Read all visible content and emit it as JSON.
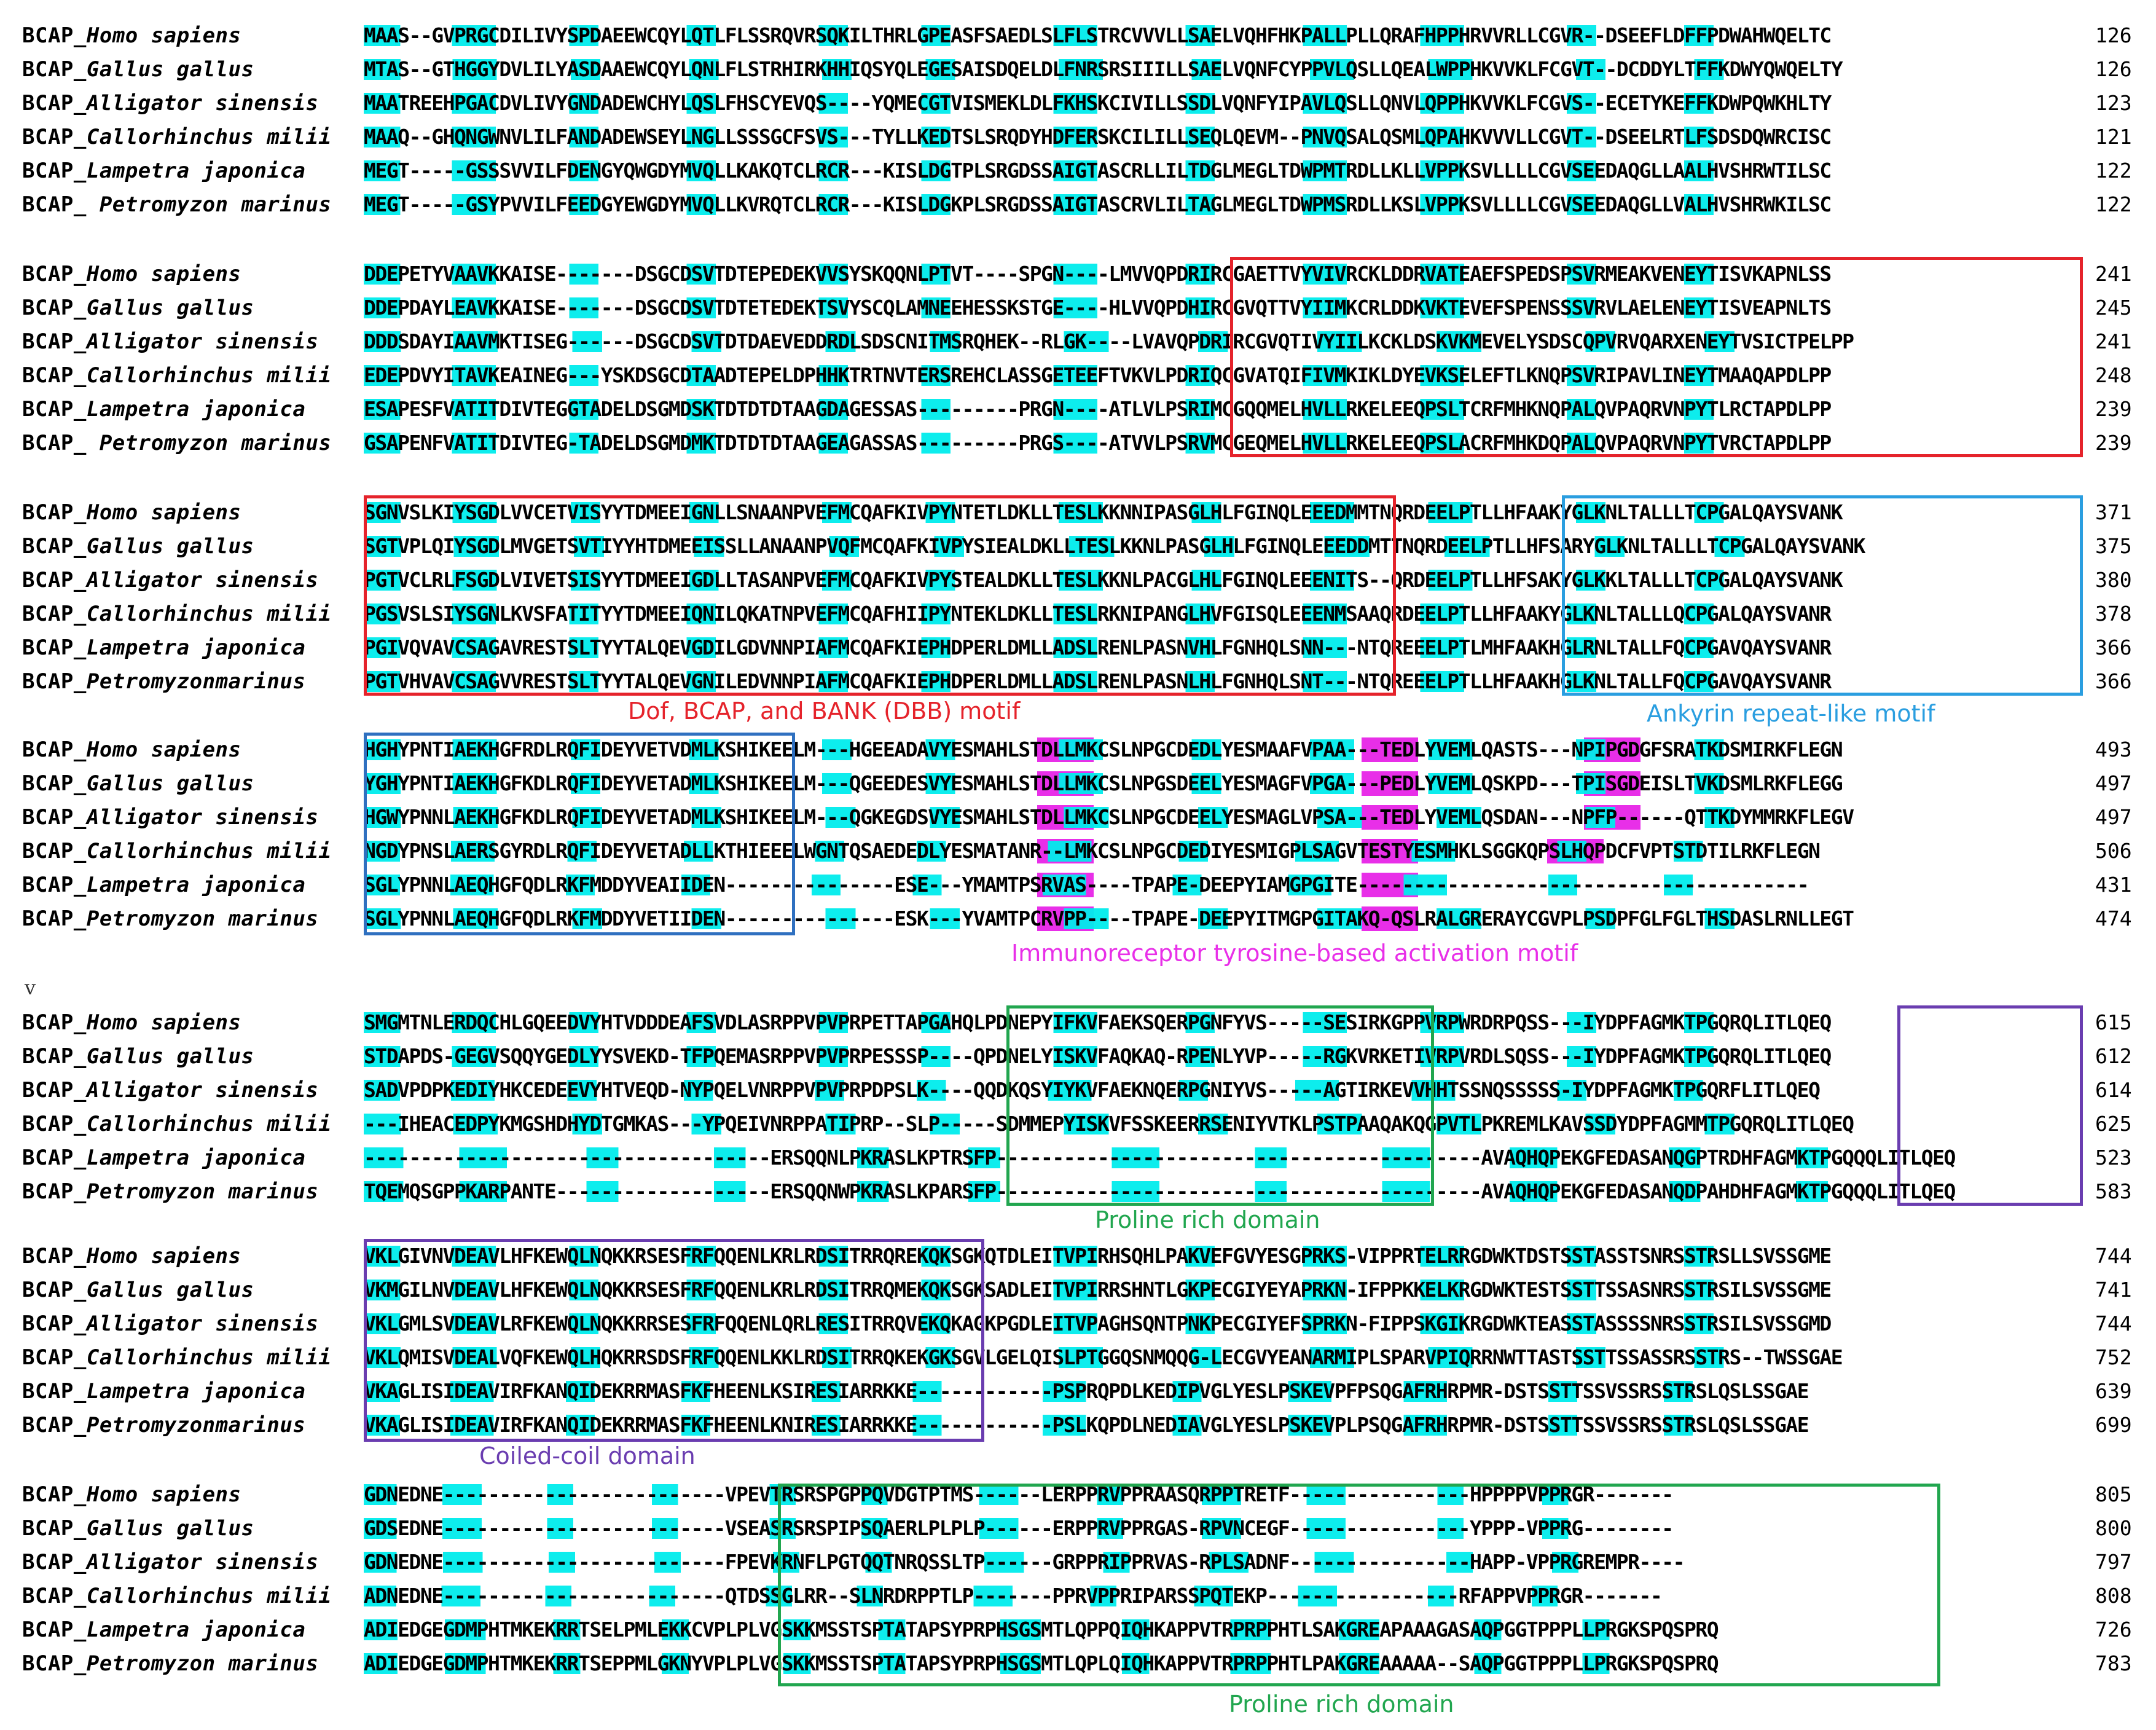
{
  "blocks": [
    {
      "rows": [
        {
          "label": "BCAP_",
          "species": "Homo sapiens",
          "seq": "MAAS--GVPRGCDILIVYSPDAEEWCQYLQTLFLSSRQVRSQKILTHRLGPEASFSAEDLSLFLSTRCVVVLLSAELVQHFHKPALLPLLQRAFHPPHRVVRLLCGVR--DSEEFLDFFPDWAHWQELTC",
          "num": "126"
        },
        {
          "label": "BCAP_",
          "species": "Gallus gallus",
          "seq": "MTAS--GTHGGYDVLILYASDAAEWCQYLQNLFLSTRHIRKHHIQSYQLEGESAISDQELDLFNRSRSIIILLSAELVQNFCYPPVLQSLLQEALWPPHKVVKLFCGVT--DCDDYLTFFKDWYQWQELTY",
          "num": "126"
        },
        {
          "label": "BCAP_",
          "species": "Alligator sinensis",
          "seq": "MAATREEHPGACDVLIVYGNDADEWCHYLQSLFHSCYEVQS----YQMECGTVISMEKLDLFKHSKCIVILLSSDLVQNFYIPAVLQSLLQNVLQPPHKVVKLFCGVS--ECETYKEFFKDWPQWKHLTY",
          "num": "123"
        },
        {
          "label": "BCAP_",
          "species": "Callorhinchus milii",
          "seq": "MAAQ--GHQNGWNVLILFANDADEWSEYLNGLLSSSGCFSVS---TYLLKEDTSLSRQDYHDFERSKCILILLSEQLQEVM--PNVQSALQSMLQPAHKVVVLLCGVT--DSEELRTLFSDSDQWRCISC",
          "num": "121"
        },
        {
          "label": "BCAP_",
          "species": "Lampetra japonica",
          "seq": "MEGT-----GSSSVVILFDENGYQWGDYMVQLLKAKQTCLRCR---KISLDGTPLSRGDSSAIGTASCRLLILTDGLMEGLTDWPMTRDLLKLLVPPKSVLLLLCGVSEEDAQGLLAALHVSHRWTILSC",
          "num": "122"
        },
        {
          "label": "BCAP_ ",
          "species": "Petromyzon marinus",
          "seq": "MEGT-----GSYPVVILFEEDGYEWGDYMVQLLKVRQTCLRCR---KISLDGKPLSRGDSSAIGTASCRVLILTAGLMEGLTDWPMSRDLLKSLVPPKSVLLLLCGVSEEDAQGLLVALHVSHRWKILSC",
          "num": "122"
        }
      ]
    },
    {
      "rows": [
        {
          "label": "BCAP_",
          "species": "Homo sapiens",
          "seq": "DDEPETYVAAVKKAISE-------DSGCDSVTDTEPEDEKVVSYSKQQNLPTVT----SPGN----LMVVQPDRIRCGAETTVYVIVRCKLDDRVATEAEFSPEDSPSVRMEAKVENEYTISVKAPNLSS",
          "num": "241"
        },
        {
          "label": "BCAP_",
          "species": "Gallus gallus",
          "seq": "DDEPDAYLEAVKKAISE-------DSGCDSVTDTETEDEKTSVYSCQLAMNEEHESSKSTGE----HLVVQPDHIRCGVQTTVYIIMKCRLDDKVKTEVEFSPENSSSVRVLAELENEYTISVEAPNLTS",
          "num": "245"
        },
        {
          "label": "BCAP_",
          "species": "Alligator sinensis",
          "seq": "DDDSDAYIAAVMKTISEG------DSGCDSVTDTDAEVEDDRDLSDSCNITMSRQHEK--RLGK----LVAVQPDRIRCGVQTIVYIILKCKLDSKVKMEVELYSDSCQPVRVQARXENEYTVSICTPELPP",
          "num": "241"
        },
        {
          "label": "BCAP_",
          "species": "Callorhinchus milii",
          "seq": "EDEPDVYITAVKEAINEG---YSKDSGCDTAADTEPELDPHHKTRTNVTERSREHCLASSGETEEFTVKVLPDRIQCGVATQIFIVMKIKLDYEVKSELEFTLKNQPSVRIPAVLINEYTMAAQAPDLPP",
          "num": "248"
        },
        {
          "label": "BCAP_",
          "species": "Lampetra japonica",
          "seq": "ESAPESFVATITDIVTEGGTADELDSGMDSKTDTDTDTAAGDAGESSAS---------PRGN----ATLVLPSRIMCGQQMELHVLLRKELEEQPSLTCRFMHKNQPALQVPAQRVNPYTLRCTAPDLPP",
          "num": "239"
        },
        {
          "label": "BCAP_ ",
          "species": "Petromyzon marinus",
          "seq": "GSAPENFVATITDIVTEG-TADELDSGMDMKTDTDTDTAAGEAGASSAS---------PRGS----ATVVLPSRVMCGEQMELHVLLRKELEEQPSLACRFMHKDQPALQVPAQRVNPYTVRCTAPDLPP",
          "num": "239"
        }
      ]
    },
    {
      "rows": [
        {
          "label": "BCAP_",
          "species": "Homo sapiens",
          "seq": "SGNVSLKIYSGDLVVCETVISYYTDMEEIGNLLSNAANPVEFMCQAFKIVPYNTETLDKLLTESLKKNNIPASGLHLFGINQLEEEDMMTNQRDEELPTLLHFAAKYGLKNLTALLLTCPGALQAYSVANK",
          "num": "371"
        },
        {
          "label": "BCAP_",
          "species": "Gallus gallus",
          "seq": "SGTVPLQIYSGDLMVGETSVTIYYHTDMEEISSLLANAANPVQFMCQAFKIVPYSIEALDKLLTESLKKNLPASGLHLFGINQLEEEDDMTTNQRDEELPTLLHFSARYGLKNLTALLLTCPGALQAYSVANK",
          "num": "375"
        },
        {
          "label": "BCAP_",
          "species": "Alligator sinensis",
          "seq": "PGTVCLRLFSGDLVIVETSISYYTDMEEIGDLLTASANPVEFMCQAFKIVPYSTEALDKLLTESLKKNLPACGLHLFGINQLEEENITS--QRDEELPTLLHFSAKYGLKKLTALLLTCPGALQAYSVANK",
          "num": "380"
        },
        {
          "label": "BCAP_",
          "species": "Callorhinchus milii",
          "seq": "PGSVSLSIYSGNLKVSFATITYYTDMEEIQNILQKATNPVEFMCQAFHIIPYNTEKLDKLLTESLRKNIPANGLHVFGISQLEEENMSAAQRDEELPTLLHFAAKYGLKNLTALLLQCPGALQAYSVANR",
          "num": "378"
        },
        {
          "label": "BCAP_",
          "species": "Lampetra japonica",
          "seq": "PGIVQVAVCSAGAVRESTSLTYYTALQEVGDILGDVNNPIAFMCQAFKIEPHDPERLDMLLADSLRENLPASNVHLFGNHQLSNN---NTQREEELPTLMHFAAKHGLRNLTALLFQCPGAVQAYSVANR",
          "num": "366"
        },
        {
          "label": "BCAP_",
          "species": "Petromyzonmarinus",
          "seq": "PGTVHVAVCSAGVVRESTSLTYYTALQEVGNILEDVNNPIAFMCQAFKIEPHDPERLDMLLADSLRENLPASNLHLFGNHQLSNT---NTQREEELPTLLHFAAKHGLKNLTALLFQCPGAVQAYSVANR",
          "num": "366"
        }
      ]
    },
    {
      "rows": [
        {
          "label": "BCAP_",
          "species": "Homo sapiens",
          "seq": "HGHYPNTIAEKHGFRDLRQFIDEYVETVDMLKSHIKEELM---HGEEADAVYESMAHLSTDLLMKCSLNPGCDEDLYESMAAFVPAA---TEDLYVEMLQASTS---NPIPGDGFSRATKDSMIRKFLEGN",
          "num": "493"
        },
        {
          "label": "BCAP_",
          "species": "Gallus gallus",
          "seq": "YGHYPNTIAEKHGFKDLRQFIDEYVETADMLKSHIKEELM---QGEEDESVYESMAHLSTDLLMKCSLNPGSDEELYESMAGFVPGA---PEDLYVEMLQSKPD---TPISGDEISLTVKDSMLRKFLEGG",
          "num": "497"
        },
        {
          "label": "BCAP_",
          "species": "Alligator sinensis",
          "seq": "HGWYPNNLAEKHGFKDLRQFIDEYVETADMLKSHIKEELM---QGKEGDSVYESMAHLSTDLLMKCSLNPGCDEELYESMAGLVPSA---TEDLYVEMLQSDAN---NPFP------QTTKDYMMRKFLEGV",
          "num": "497"
        },
        {
          "label": "BCAP_",
          "species": "Callorhinchus milii",
          "seq": "NGDYPNSLAERSGYRDLRQFIDEYVETADLLKTHIEEELWGNTQSAEDEDLYESMATANR--LMKCSLNPGCDEDIYESMIGPLSAGVTESTYESMHKLSGGKQPSLHQPDCFVPTSTDTILRKFLEGN",
          "num": "506"
        },
        {
          "label": "BCAP_",
          "species": "Lampetra japonica",
          "seq": "SGLYPNNLAEQHGFQDLRKFMDDYVEAIIDEN---------------ESE---YMAMTPSRVAS----TPAPE-DEEPYIAMGPGITE----------------------------------------",
          "num": "431"
        },
        {
          "label": "BCAP_",
          "species": "Petromyzon marinus",
          "seq": "SGLYPNNLAEQHGFQDLRKFMDDYVETIIDEN---------------ESK---YVAMTPCRVPP----TPAPE-DEEPYITMGPGITAKQ-QSLRALGRERAYCGVPLPSDPFGLFGLTHSDASLRNLLEGT",
          "num": "474"
        }
      ]
    },
    {
      "rows": [
        {
          "label": "BCAP_",
          "species": "Homo sapiens",
          "seq": "SMGMTNLERDQCHLGQEEDVYHTVDDDEAFSVDLASRPPVPVPRPETTAPGAHQLPDNEPYIFKVFAEKSQERPGNFYVS-----SESIRKGPPVRPWRDRPQSS---IYDPFAGMKTPGQRQLITLQEQ",
          "num": "615"
        },
        {
          "label": "BCAP_",
          "species": "Gallus gallus",
          "seq": "STDAPDS-GEGVSQQYGEDLYYSVEKD-TFPQEMASRPPVPVPRPESSSP----QPDNELYISKVFAQKAQ-RPENLYVP-----RGKVRKETIVRPVRDLSQSS---IYDPFAGMKTPGQRQLITLQEQ",
          "num": "612"
        },
        {
          "label": "BCAP_",
          "species": "Alligator sinensis",
          "seq": "SADVPDPKEDIYHKCEDEEVYHTVEQD-NYPQELVNRPPVPVPRPDPSLK----QQDKQSYIYKVFAEKNQERPGNIYVS-----AGTIRKEVVHHTSSNQSSSSS-IYDPFAGMKTPGQRFLITLQEQ",
          "num": "614"
        },
        {
          "label": "BCAP_",
          "species": "Callorhinchus milii",
          "seq": "---IHEACEDPYKMGSHDHYDTGMKAS---YPQEIVNRPPATIPRP--SLP-----SDMMEPYISKVFSSKEERRSENIYVTKLPSTPAAQAKQGPVTLPKREMLKAVSSDYDPFAGMMTPGQRQLITLQEQ",
          "num": "625"
        },
        {
          "label": "BCAP_",
          "species": "Lampetra japonica",
          "seq": "------------------------------------ERSQQNLPKRASLKPTRSFP-------------------------------------------AVAQHQPEKGFEDASANQGPTRDHFAGMKTPGQQQLITLQEQ",
          "num": "523"
        },
        {
          "label": "BCAP_",
          "species": "Petromyzon marinus",
          "seq": "TQEMQSGPPKARPANTE-------------------ERSQQNWPKRASLKPARSFP-------------------------------------------AVAQHQPEKGFEDASANQDPAHDHFAGMKTPGQQQLITLQEQ",
          "num": "583"
        }
      ]
    },
    {
      "rows": [
        {
          "label": "BCAP_",
          "species": "Homo sapiens",
          "seq": "VKLGIVNVDEAVLHFKEWQLNQKKRSESFRFQQENLKRLRDSITRRQREKQKSGKQTDLEITVPIRHSQHLPAKVEFGVYESGPRKS-VIPPRTELRRGDWKTDSTSSTASSTSNRSSTRSLLSVSSGME",
          "num": "744"
        },
        {
          "label": "BCAP_",
          "species": "Gallus gallus",
          "seq": "VKMGILNVDEAVLHFKEWQLNQKKRSESFRFQQENLKRLRDSITRRQMEKQKSGKSADLEITVPIRRSHNTLGKPECGIYEYAPRKN-IFPPKKELKRGDWKTESTSSTTSSASNRSSTRSILSVSSGME",
          "num": "741"
        },
        {
          "label": "BCAP_",
          "species": "Alligator sinensis",
          "seq": "VKLGMLSVDEAVLRFKEWQLNQKKRRSESFRFQQENLQRLRESITRRQVEKQKAGKPGDLEITVPAGHSQNTPNKPECGIYEFSPRKN-FIPPSKGIKRGDWKTEASSTASSSSNRSSTRSILSVSSGMD",
          "num": "744"
        },
        {
          "label": "BCAP_",
          "species": "Callorhinchus milii",
          "seq": "VKLQMISVDEALVQFKEWQLHQKRRSDSFRFQQENLKKLRDSITRRQKEKGKSGVLGELQISLPTGGQSNMQQG-LECGVYEANARMIPLSPARVPIQRRNWTTASTSSTTSSASSRSSTRS--TWSSGAE",
          "num": "752"
        },
        {
          "label": "BCAP_",
          "species": "Lampetra japonica",
          "seq": "VKAGLISIDEAVIRFKANQIDEKRRMASFKFHEENLKSIRESIARRKKE------------PSPRQPDLKEDIPVGLYESLPSKEVPFPSQGAFRHRPMR-DSTSSTTSSVSSRSSTRSLQSLSSGAE",
          "num": "639"
        },
        {
          "label": "BCAP_",
          "species": "Petromyzonmarinus",
          "seq": "VKAGLISIDEAVIRFKANQIDEKRRMASFKFHEENLKNIRESIARRKKE------------PSLKQPDLNEDIAVGLYESLPSKEVPLPSQGAFRHRPMR-DSTSSTTSSVSSRSSTRSLQSLSSGAE",
          "num": "699"
        }
      ]
    },
    {
      "rows": [
        {
          "label": "BCAP_",
          "species": "Homo sapiens",
          "seq": "GDNEDNE-------------------------VPEVTRSRSPGPPQVDGTPTMS------LERPPRVPPRAASQRPPTRETF----------------HPPPPVPPRGR-------",
          "num": "805"
        },
        {
          "label": "BCAP_",
          "species": "Gallus gallus",
          "seq": "GDSEDNE-------------------------VSEASRSRSPIPSQAERLPLPLP------ERPPRVPPRGAS-RPVNCEGF----------------YPPP-VPPRG--------",
          "num": "800"
        },
        {
          "label": "BCAP_",
          "species": "Alligator sinensis",
          "seq": "GDNEDNE-------------------------FPEVKRNFLPGTQQTNRQSSLTP------GRPPRIPPRVAS-RPLSADNF----------------HAPP-VPPRGREMPR----",
          "num": "797"
        },
        {
          "label": "BCAP_",
          "species": "Callorhinchus milii",
          "seq": "ADNEDNE-------------------------QTDSSGLRR--SLNRDRPPTLP-------PPRVPPRIPARSSPQTEKP-----------------RFAPPVPPRGR-------",
          "num": "808"
        },
        {
          "label": "BCAP_",
          "species": "Lampetra japonica",
          "seq": "ADIEDGEGDMPHTMKEKRRTSELPMLEKKCVPLPLVGSKKMSSTSPTATAPSYPRPHSGSMTLQPPQIQHKAPPVTRPRPPHTLSAKGREAPAAAGASAQPGGTPPPLLPRGKSPQSPRQ",
          "num": "726"
        },
        {
          "label": "BCAP_",
          "species": "Petromyzon marinus",
          "seq": "ADIEDGEGDMPHTMKEKRRTSEPPMLGKNYVPLPLVGSKKMSSTSPTATAPSYPRPHSGSMTLQPLQIQHKAPPVTRPRPPHTLPAKGREAAAAA--SAQPGGTPPPLLPRGKSPQSPRQ",
          "num": "783"
        }
      ]
    }
  ],
  "captions": {
    "dbb": "Dof, BCAP, and BANK (DBB) motif",
    "ankyrin": "Ankyrin repeat-like motif",
    "itam": "Immunoreceptor tyrosine-based activation motif",
    "proline1": "Proline rich domain",
    "coiled": "Coiled-coil domain",
    "proline2": "Proline rich domain"
  },
  "stray_mark": "v",
  "colors": {
    "conserved": "#00ecec",
    "itam": "#e82fe8",
    "dbb": "#e5232b",
    "ankyrin": "#2a9ee0",
    "ankyrin_extra": "#2f70c0",
    "proline": "#21a64f",
    "coiled": "#6a3db0"
  }
}
